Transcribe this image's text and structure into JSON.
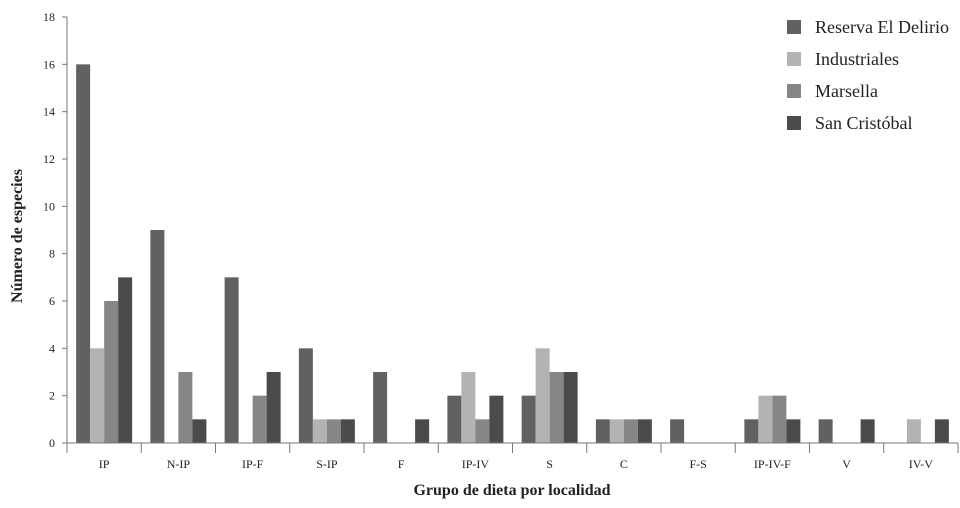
{
  "chart_data": {
    "type": "bar",
    "title": "",
    "xlabel": "Grupo de dieta por localidad",
    "ylabel": "Número de especies",
    "ylim": [
      0,
      18
    ],
    "yticks": [
      0,
      2,
      4,
      6,
      8,
      10,
      12,
      14,
      16,
      18
    ],
    "grid": false,
    "legend_position": "top-right",
    "categories": [
      "IP",
      "N-IP",
      "IP-F",
      "S-IP",
      "F",
      "IP-IV",
      "S",
      "C",
      "F-S",
      "IP-IV-F",
      "V",
      "IV-V"
    ],
    "series": [
      {
        "name": "Reserva El Delirio",
        "color": "#616161",
        "values": [
          16,
          9,
          7,
          4,
          3,
          2,
          2,
          1,
          1,
          1,
          1,
          0
        ]
      },
      {
        "name": "Industriales",
        "color": "#b3b3b3",
        "values": [
          4,
          0,
          0,
          1,
          0,
          3,
          4,
          1,
          0,
          2,
          0,
          1
        ]
      },
      {
        "name": "Marsella",
        "color": "#868686",
        "values": [
          6,
          3,
          2,
          1,
          0,
          1,
          3,
          1,
          0,
          2,
          0,
          0
        ]
      },
      {
        "name": "San Cristóbal",
        "color": "#4b4b4b",
        "values": [
          7,
          1,
          3,
          1,
          1,
          2,
          3,
          1,
          0,
          1,
          1,
          1
        ]
      }
    ]
  }
}
